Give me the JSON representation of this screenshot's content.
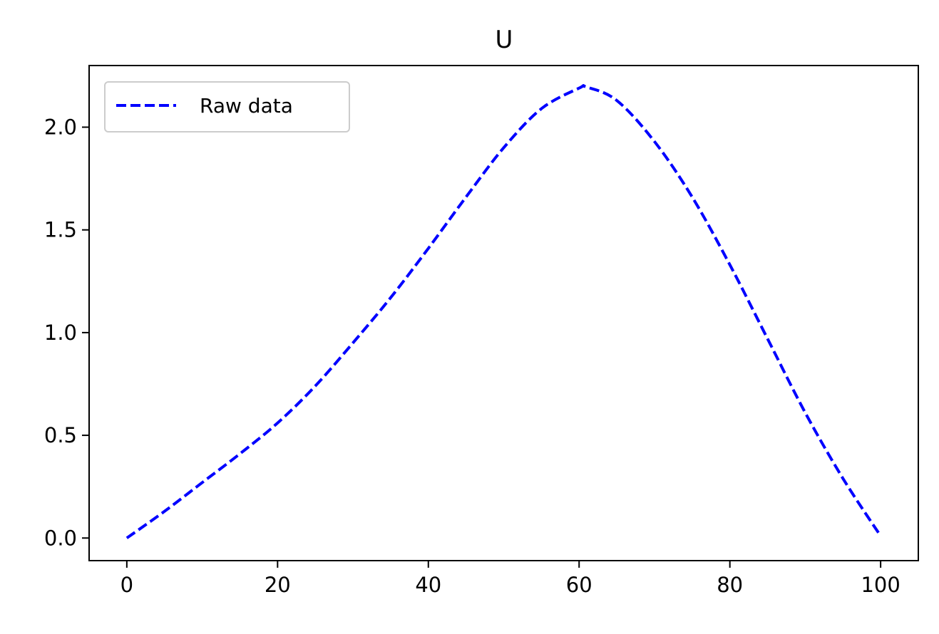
{
  "chart_data": {
    "type": "line",
    "title": "U",
    "xlabel": "",
    "ylabel": "",
    "xlim": [
      -5,
      105
    ],
    "ylim": [
      -0.11,
      2.3
    ],
    "xticks": [
      0,
      20,
      40,
      60,
      80,
      100
    ],
    "xtick_labels": [
      "0",
      "20",
      "40",
      "60",
      "80",
      "100"
    ],
    "yticks": [
      0.0,
      0.5,
      1.0,
      1.5,
      2.0
    ],
    "ytick_labels": [
      "0.0",
      "0.5",
      "1.0",
      "1.5",
      "2.0"
    ],
    "grid": false,
    "legend": {
      "placement": "top-left",
      "entries": [
        "Raw data"
      ]
    },
    "series": [
      {
        "name": "Raw data",
        "color": "#0000ff",
        "linestyle": "dashed",
        "x": [
          0,
          5,
          10,
          15,
          20,
          25,
          30,
          35,
          40,
          45,
          50,
          55,
          60,
          61,
          65,
          70,
          75,
          80,
          85,
          90,
          95,
          100
        ],
        "y": [
          0.0,
          0.13,
          0.27,
          0.41,
          0.56,
          0.74,
          0.95,
          1.17,
          1.41,
          1.66,
          1.9,
          2.09,
          2.19,
          2.195,
          2.13,
          1.93,
          1.66,
          1.33,
          0.97,
          0.61,
          0.29,
          0.01
        ]
      }
    ]
  }
}
